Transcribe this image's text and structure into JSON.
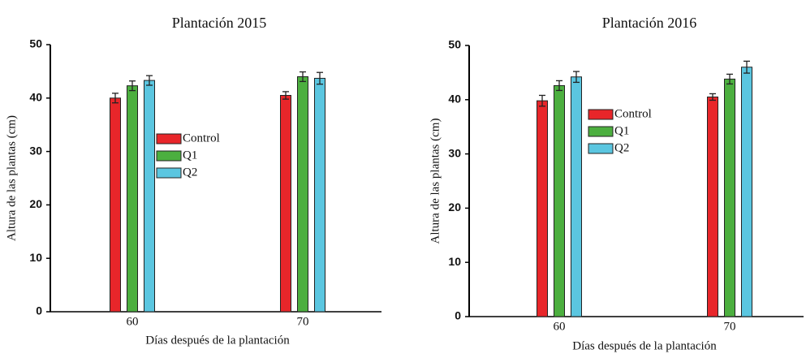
{
  "chart_data": [
    {
      "type": "bar",
      "title": "Plantación 2015",
      "x_label": "Días después de la plantación",
      "y_label": "Altura de las plantas (cm)",
      "categories": [
        "60",
        "70"
      ],
      "series": [
        {
          "name": "Control",
          "color": "#e8262a",
          "values": [
            40,
            40.5
          ],
          "errors": [
            0.9,
            0.7
          ]
        },
        {
          "name": "Q1",
          "color": "#4caf3f",
          "values": [
            42.3,
            44
          ],
          "errors": [
            0.9,
            0.9
          ]
        },
        {
          "name": "Q2",
          "color": "#5bc6e0",
          "values": [
            43.3,
            43.7
          ],
          "errors": [
            0.9,
            1.1
          ]
        }
      ],
      "ylim": [
        0,
        50
      ],
      "yticks": [
        0,
        10,
        20,
        30,
        40,
        50
      ]
    },
    {
      "type": "bar",
      "title": "Plantación 2016",
      "x_label": "Días después de la plantación",
      "y_label": "Altura de las plantas (cm)",
      "categories": [
        "60",
        "70"
      ],
      "series": [
        {
          "name": "Control",
          "color": "#e8262a",
          "values": [
            39.8,
            40.5
          ],
          "errors": [
            1.0,
            0.6
          ]
        },
        {
          "name": "Q1",
          "color": "#4caf3f",
          "values": [
            42.6,
            43.8
          ],
          "errors": [
            0.9,
            0.9
          ]
        },
        {
          "name": "Q2",
          "color": "#5bc6e0",
          "values": [
            44.2,
            46
          ],
          "errors": [
            1.0,
            1.1
          ]
        }
      ],
      "ylim": [
        0,
        50
      ],
      "yticks": [
        0,
        10,
        20,
        30,
        40,
        50
      ]
    }
  ]
}
